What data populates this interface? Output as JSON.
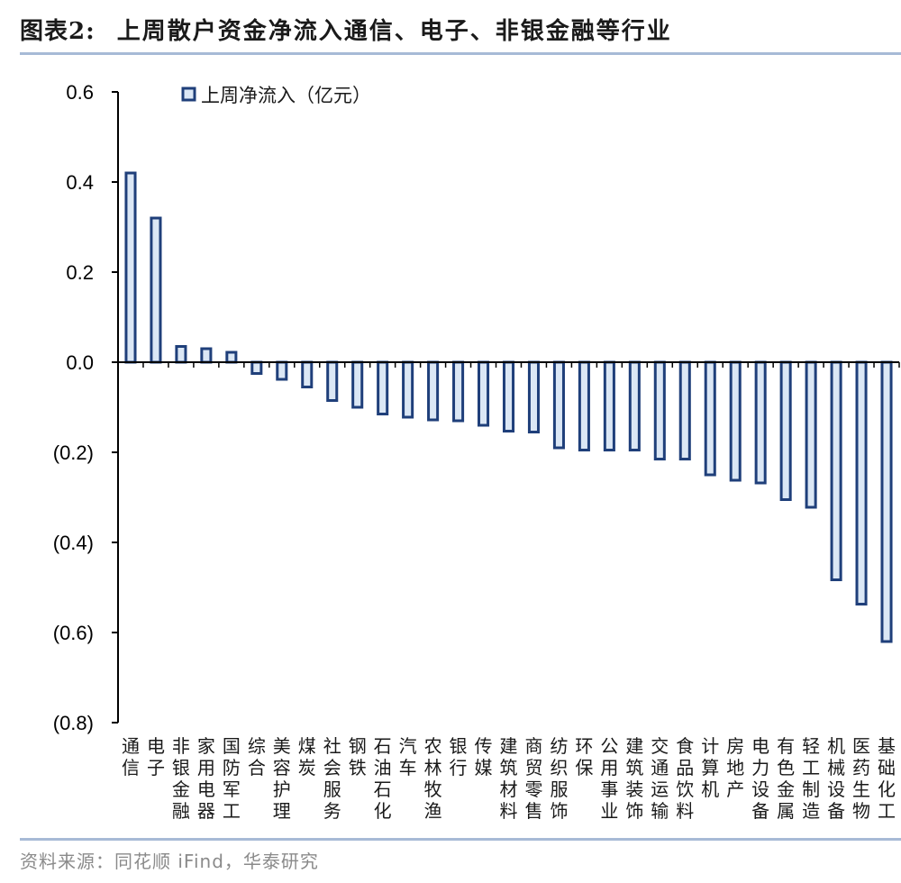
{
  "header": {
    "figure_label": "图表2:",
    "title": "上周散户资金净流入通信、电子、非银金融等行业"
  },
  "footer": {
    "source": "资料来源：同花顺 iFind，华泰研究"
  },
  "colors": {
    "bar_border": "#1f3f7a",
    "bar_fill": "#dbe7f5",
    "rule": "#a7bad6",
    "axis": "#000000"
  },
  "chart_data": {
    "type": "bar",
    "legend": "上周净流入（亿元）",
    "legend_position": "top-left",
    "grid": false,
    "categories": [
      "通信",
      "电子",
      "非银金融",
      "家用电器",
      "国防军工",
      "综合",
      "美容护理",
      "煤炭",
      "社会服务",
      "钢铁",
      "石油石化",
      "汽车",
      "农林牧渔",
      "银行",
      "传媒",
      "建筑材料",
      "商贸零售",
      "纺织服饰",
      "环保",
      "公用事业",
      "建筑装饰",
      "交通运输",
      "食品饮料",
      "计算机",
      "房地产",
      "电力设备",
      "有色金属",
      "轻工制造",
      "机械设备",
      "医药生物",
      "基础化工"
    ],
    "series": [
      {
        "name": "上周净流入（亿元）",
        "values": [
          0.42,
          0.32,
          0.035,
          0.03,
          0.022,
          -0.025,
          -0.038,
          -0.055,
          -0.085,
          -0.1,
          -0.115,
          -0.122,
          -0.128,
          -0.13,
          -0.14,
          -0.153,
          -0.155,
          -0.19,
          -0.195,
          -0.195,
          -0.195,
          -0.215,
          -0.215,
          -0.25,
          -0.262,
          -0.268,
          -0.305,
          -0.322,
          -0.483,
          -0.537,
          -0.62
        ]
      }
    ],
    "ylim": [
      -0.8,
      0.6
    ],
    "yticks": [
      0.6,
      0.4,
      0.2,
      0.0,
      -0.2,
      -0.4,
      -0.6,
      -0.8
    ],
    "ytick_labels": [
      "0.6",
      "0.4",
      "0.2",
      "0.0",
      "(0.2)",
      "(0.4)",
      "(0.6)",
      "(0.8)"
    ],
    "xlabel": "",
    "ylabel": ""
  }
}
